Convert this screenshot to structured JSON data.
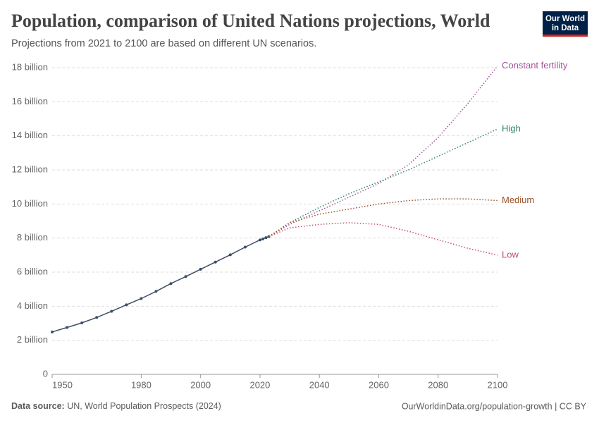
{
  "chart_data": {
    "type": "line",
    "title": "Population, comparison of United Nations projections, World",
    "subtitle": "Projections from 2021 to 2100 are based on different UN scenarios.",
    "source_label": "Data source:",
    "source": "UN, World Population Prospects (2024)",
    "credit": "OurWorldinData.org/population-growth | CC BY",
    "logo": [
      "Our World",
      "in Data"
    ],
    "xlim": [
      1950,
      2100
    ],
    "xticks": [
      1950,
      1980,
      2000,
      2020,
      2040,
      2060,
      2080,
      2100
    ],
    "ylim": [
      0,
      18
    ],
    "yticks": [
      0,
      {
        "value": 2,
        "label": "2 billion"
      },
      {
        "value": 4,
        "label": "4 billion"
      },
      {
        "value": 6,
        "label": "6 billion"
      },
      {
        "value": 8,
        "label": "8 billion"
      },
      {
        "value": 10,
        "label": "10 billion"
      },
      {
        "value": 12,
        "label": "12 billion"
      },
      {
        "value": 14,
        "label": "14 billion"
      },
      {
        "value": 16,
        "label": "16 billion"
      },
      {
        "value": 18,
        "label": "18 billion"
      }
    ],
    "grid": true,
    "series": [
      {
        "color": "#3c4e66",
        "markers": true,
        "x": [
          1950,
          1955,
          1960,
          1965,
          1970,
          1975,
          1980,
          1985,
          1990,
          1995,
          2000,
          2005,
          2010,
          2015,
          2020,
          2021,
          2022,
          2023
        ],
        "values": [
          2.49,
          2.75,
          3.02,
          3.34,
          3.7,
          4.08,
          4.45,
          4.87,
          5.33,
          5.74,
          6.17,
          6.59,
          7.02,
          7.47,
          7.89,
          7.95,
          8.02,
          8.09
        ]
      },
      {
        "name": "Constant fertility",
        "color": "#a2559c",
        "dashed": true,
        "x": [
          2023,
          2030,
          2040,
          2050,
          2060,
          2070,
          2080,
          2090,
          2100
        ],
        "values": [
          8.09,
          8.8,
          9.6,
          10.4,
          11.2,
          12.3,
          13.9,
          15.9,
          18.1
        ]
      },
      {
        "name": "High",
        "color": "#2c8465",
        "dashed": true,
        "x": [
          2023,
          2030,
          2040,
          2050,
          2060,
          2070,
          2080,
          2090,
          2100
        ],
        "values": [
          8.09,
          8.9,
          9.8,
          10.6,
          11.3,
          12.0,
          12.8,
          13.6,
          14.4
        ]
      },
      {
        "name": "Medium",
        "color": "#9a5129",
        "dashed": true,
        "x": [
          2023,
          2030,
          2040,
          2050,
          2060,
          2070,
          2080,
          2090,
          2100
        ],
        "values": [
          8.09,
          8.9,
          9.4,
          9.7,
          10.0,
          10.2,
          10.3,
          10.3,
          10.2
        ]
      },
      {
        "name": "Low",
        "color": "#c15065",
        "dashed": true,
        "x": [
          2023,
          2030,
          2040,
          2050,
          2060,
          2070,
          2080,
          2090,
          2100
        ],
        "values": [
          8.09,
          8.6,
          8.8,
          8.9,
          8.8,
          8.4,
          7.9,
          7.4,
          7.0
        ]
      }
    ]
  }
}
